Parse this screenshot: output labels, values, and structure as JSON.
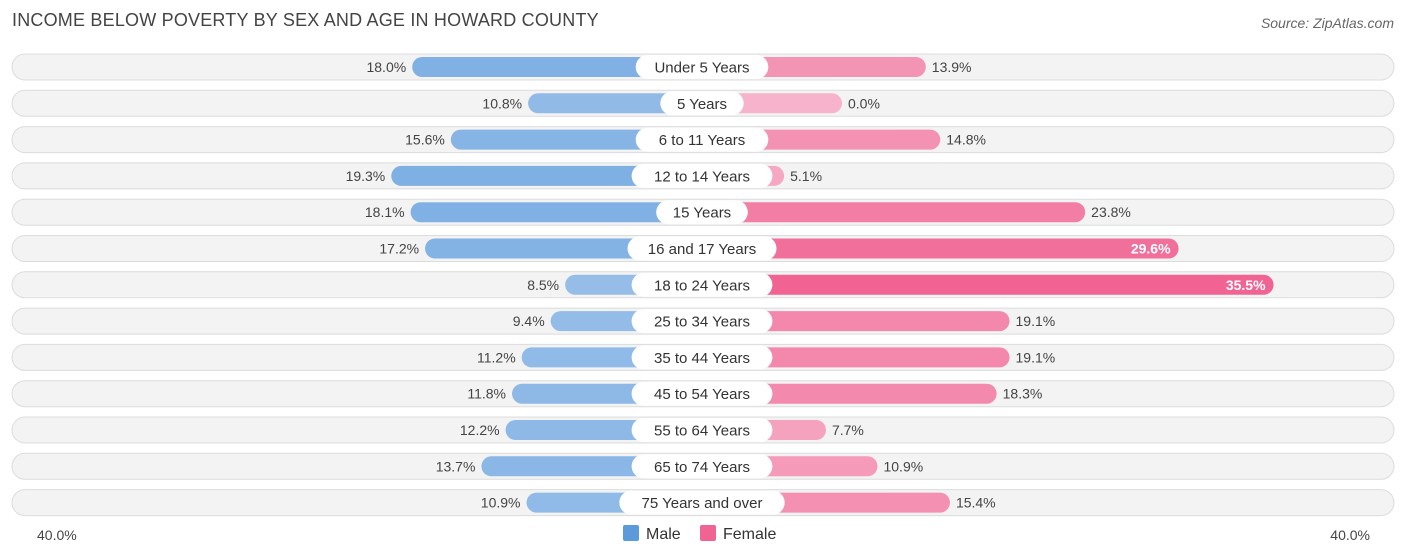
{
  "title": "INCOME BELOW POVERTY BY SEX AND AGE IN HOWARD COUNTY",
  "source": "Source: ZipAtlas.com",
  "colors": {
    "male_light": "#a8c8ec",
    "male_dark": "#5b9bdc",
    "female_light": "#f7b3cb",
    "female_dark": "#f06392"
  },
  "chart_data": {
    "type": "bar",
    "orientation": "horizontal-diverging",
    "title": "INCOME BELOW POVERTY BY SEX AND AGE IN HOWARD COUNTY",
    "categories": [
      "Under 5 Years",
      "5 Years",
      "6 to 11 Years",
      "12 to 14 Years",
      "15 Years",
      "16 and 17 Years",
      "18 to 24 Years",
      "25 to 34 Years",
      "35 to 44 Years",
      "45 to 54 Years",
      "55 to 64 Years",
      "65 to 74 Years",
      "75 Years and over"
    ],
    "series": [
      {
        "name": "Male",
        "values": [
          18.0,
          10.8,
          15.6,
          19.3,
          18.1,
          17.2,
          8.5,
          9.4,
          11.2,
          11.8,
          12.2,
          13.7,
          10.9
        ]
      },
      {
        "name": "Female",
        "values": [
          13.9,
          0.0,
          14.8,
          5.1,
          23.8,
          29.6,
          35.5,
          19.1,
          19.1,
          18.3,
          7.7,
          10.9,
          15.4
        ]
      }
    ],
    "axis_max": 40.0,
    "axis_left_label": "40.0%",
    "axis_right_label": "40.0%",
    "legend": [
      "Male",
      "Female"
    ],
    "legend_position": "bottom-center",
    "value_suffix": "%"
  }
}
